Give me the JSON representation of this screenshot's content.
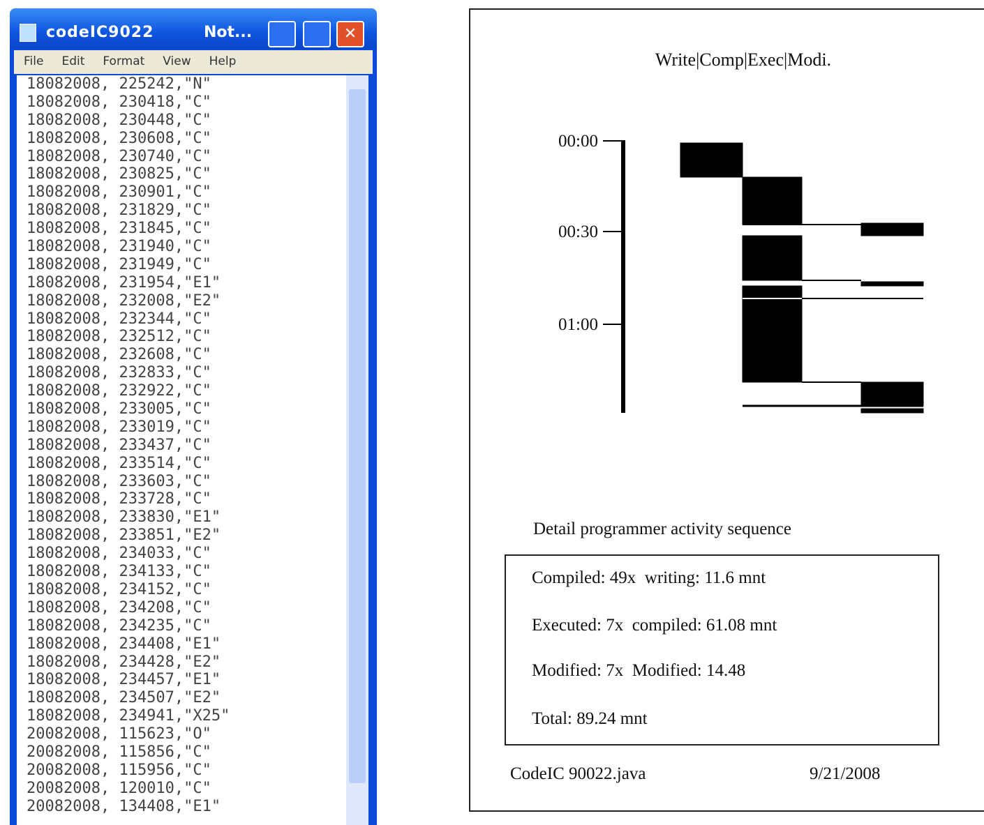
{
  "notepad": {
    "title": "codeIC9022",
    "title_suffix": "Not...",
    "menu": [
      "File",
      "Edit",
      "Format",
      "View",
      "Help"
    ],
    "lines": [
      "18082008, 225242,\"N\"",
      "18082008, 230418,\"C\"",
      "18082008, 230448,\"C\"",
      "18082008, 230608,\"C\"",
      "18082008, 230740,\"C\"",
      "18082008, 230825,\"C\"",
      "18082008, 230901,\"C\"",
      "18082008, 231829,\"C\"",
      "18082008, 231845,\"C\"",
      "18082008, 231940,\"C\"",
      "18082008, 231949,\"C\"",
      "18082008, 231954,\"E1\"",
      "18082008, 232008,\"E2\"",
      "18082008, 232344,\"C\"",
      "18082008, 232512,\"C\"",
      "18082008, 232608,\"C\"",
      "18082008, 232833,\"C\"",
      "18082008, 232922,\"C\"",
      "18082008, 233005,\"C\"",
      "18082008, 233019,\"C\"",
      "18082008, 233437,\"C\"",
      "18082008, 233514,\"C\"",
      "18082008, 233603,\"C\"",
      "18082008, 233728,\"C\"",
      "18082008, 233830,\"E1\"",
      "18082008, 233851,\"E2\"",
      "18082008, 234033,\"C\"",
      "18082008, 234133,\"C\"",
      "18082008, 234152,\"C\"",
      "18082008, 234208,\"C\"",
      "18082008, 234235,\"C\"",
      "18082008, 234408,\"E1\"",
      "18082008, 234428,\"E2\"",
      "18082008, 234457,\"E1\"",
      "18082008, 234507,\"E2\"",
      "18082008, 234941,\"X25\"",
      "20082008, 115623,\"O\"",
      "20082008, 115856,\"C\"",
      "20082008, 115956,\"C\"",
      "20082008, 120010,\"C\"",
      "20082008, 134408,\"E1\""
    ]
  },
  "report": {
    "header": "Write|Comp|Exec|Modi.",
    "time_labels": [
      "00:00",
      "00:30",
      "01:00"
    ],
    "caption": "Detail programmer activity sequence",
    "summary": [
      "Compiled: 49x  writing: 11.6 mnt",
      "Executed: 7x  compiled: 61.08 mnt",
      "Modified: 7x  Modified: 14.48",
      "Total: 89.24 mnt"
    ],
    "file": "CodeIC 90022.java",
    "date": "9/21/2008"
  }
}
